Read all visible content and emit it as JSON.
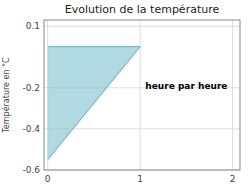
{
  "chart_data": {
    "type": "area",
    "title": "Evolution de la température",
    "y_label": "Température en °C",
    "annotations": [
      {
        "text": "heure par heure",
        "x": 1.5,
        "y": -0.19
      }
    ],
    "x": [
      0,
      1
    ],
    "values": [
      -0.55,
      0.0
    ],
    "color": "#7bbfcf",
    "xlim": [
      -0.04,
      2.08
    ],
    "ylim": [
      -0.6,
      0.13
    ],
    "xticks": [
      0,
      1,
      2
    ],
    "yticks": [
      0.1,
      -0.2,
      -0.4,
      -0.6
    ],
    "grid": true
  }
}
